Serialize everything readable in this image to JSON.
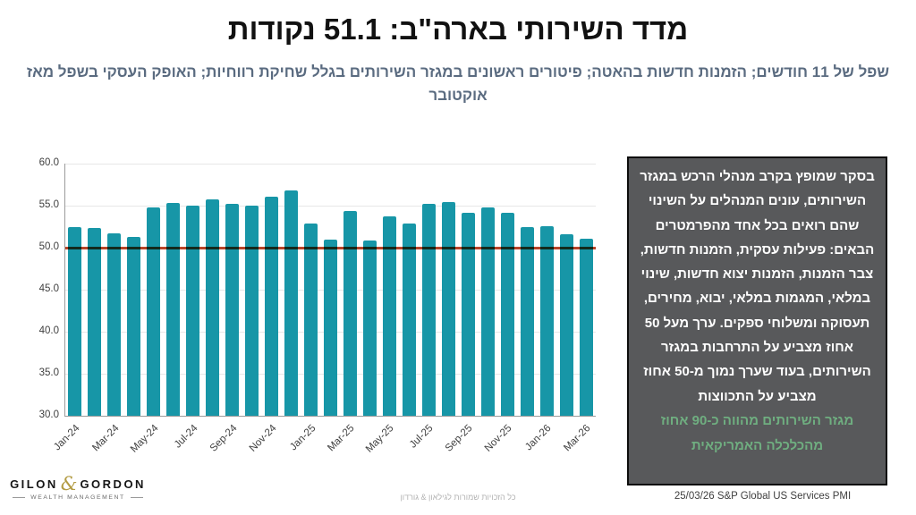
{
  "title": "מדד השירותי בארה\"ב: 51.1 נקודות",
  "subtitle": "שפל של 11 חודשים; הזמנות חדשות בהאטה; פיטורים ראשונים במגזר השירותים בגלל שחיקת רווחיות; האופק העסקי בשפל מאז אוקטובר",
  "chart_data": {
    "type": "bar",
    "title": "",
    "xlabel": "",
    "ylabel": "",
    "categories": [
      "Jan-24",
      "Feb-24",
      "Mar-24",
      "Apr-24",
      "May-24",
      "Jun-24",
      "Jul-24",
      "Aug-24",
      "Sep-24",
      "Oct-24",
      "Nov-24",
      "Dec-24",
      "Jan-25",
      "Feb-25",
      "Mar-25",
      "Apr-25",
      "May-25",
      "Jun-25",
      "Jul-25",
      "Aug-25",
      "Sep-25",
      "Oct-25",
      "Nov-25",
      "Dec-25",
      "Jan-26",
      "Feb-26",
      "Mar-26"
    ],
    "values": [
      52.5,
      52.3,
      51.7,
      51.3,
      54.8,
      55.3,
      55.0,
      55.7,
      55.2,
      55.0,
      56.1,
      56.8,
      52.9,
      51.0,
      54.4,
      50.8,
      53.7,
      52.9,
      55.2,
      55.4,
      54.2,
      54.8,
      54.1,
      52.4,
      52.6,
      51.6,
      51.1
    ],
    "x_tick_labels": [
      "Jan-24",
      "Mar-24",
      "May-24",
      "Jul-24",
      "Sep-24",
      "Nov-24",
      "Jan-25",
      "Mar-25",
      "May-25",
      "Jul-25",
      "Sep-25",
      "Nov-25",
      "Jan-26",
      "Mar-26"
    ],
    "x_tick_every": 2,
    "ylim": [
      30,
      60
    ],
    "ytick_step": 5,
    "yticks": [
      "60.0",
      "55.0",
      "50.0",
      "45.0",
      "40.0",
      "35.0",
      "30.0"
    ],
    "reference_line": 50,
    "grid": true,
    "legend": "none",
    "bar_color": "#1796a7",
    "reference_line_color": "#c2472a"
  },
  "info_box": {
    "text": "בסקר שמופץ בקרב מנהלי הרכש במגזר השירותים, עונים המנהלים על השינוי שהם רואים בכל אחד מהפרמטרים הבאים: פעילות עסקית, הזמנות חדשות, צבר הזמנות, הזמנות יצוא חדשות, שינוי במלאי, המגמות במלאי, יבוא, מחירים, תעסוקה ומשלוחי ספקים. ערך מעל 50 אחוז מצביע על התרחבות במגזר השירותים, בעוד שערך נמוך מ-50 אחוז מצביע על התכווצות",
    "highlight_text": "מגזר השירותים מהווה כ-90 אחוז מהכלכלה האמריקאית",
    "bg_color": "#58595b",
    "text_color": "#ffffff",
    "highlight_color": "#6fae80"
  },
  "footer": {
    "date": "25/03/26",
    "source": "S&P Global US Services PMI",
    "copyright": "כל הזכויות שמורות לגילאון & גורדון"
  },
  "logo": {
    "name_left": "GILON",
    "ampersand": "&",
    "name_right": "GORDON",
    "tagline": "WEALTH MANAGEMENT",
    "ampersand_color": "#b39c44"
  },
  "colors": {
    "bar_teal": "#1796a7",
    "reference_red": "#c2472a",
    "subtitle_slate": "#5a6b80",
    "box_gray": "#58595b",
    "highlight_green": "#6fae80"
  }
}
